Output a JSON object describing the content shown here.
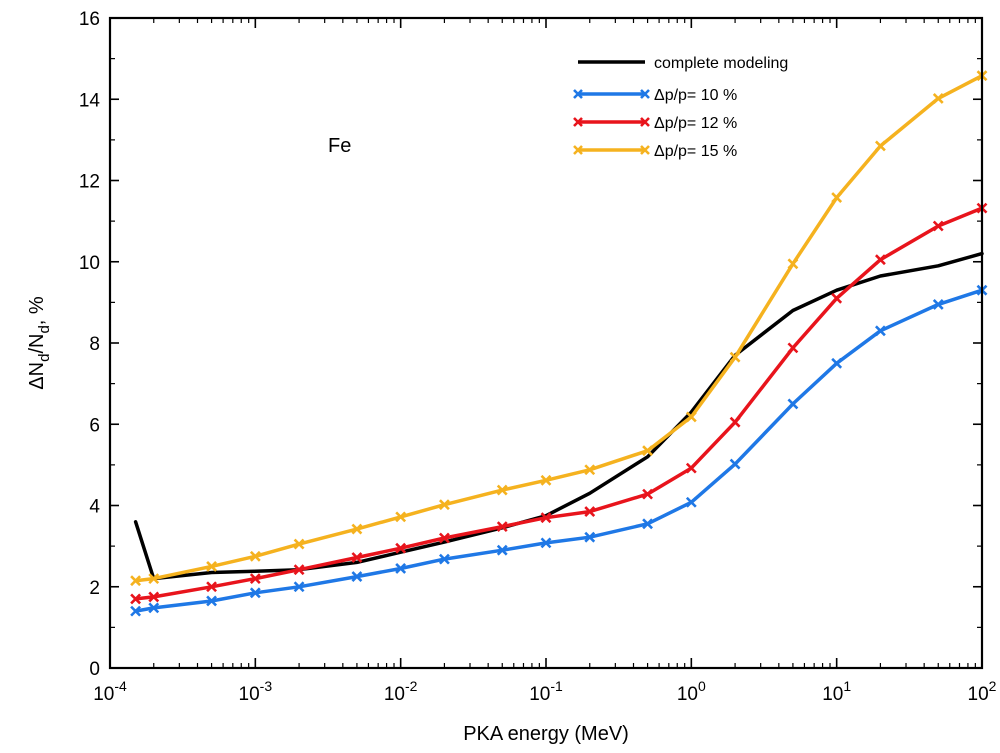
{
  "chart_data": {
    "type": "line",
    "annotation": "Fe",
    "xlabel": "PKA energy (MeV)",
    "ylabel_parts": [
      "ΔN",
      "d",
      "/N",
      "d",
      ", %"
    ],
    "x_scale": "log",
    "xlim": [
      0.0001,
      100
    ],
    "ylim": [
      0,
      16
    ],
    "grid": false,
    "legend_position": "top-right",
    "x_ticks": [
      {
        "base": "10",
        "exp": "-4",
        "value": 0.0001
      },
      {
        "base": "10",
        "exp": "-3",
        "value": 0.001
      },
      {
        "base": "10",
        "exp": "-2",
        "value": 0.01
      },
      {
        "base": "10",
        "exp": "-1",
        "value": 0.1
      },
      {
        "base": "10",
        "exp": "0",
        "value": 1
      },
      {
        "base": "10",
        "exp": "1",
        "value": 10
      },
      {
        "base": "10",
        "exp": "2",
        "value": 100
      }
    ],
    "y_ticks": [
      "0",
      "2",
      "4",
      "6",
      "8",
      "10",
      "12",
      "14",
      "16"
    ],
    "series": [
      {
        "name": "complete modeling",
        "color": "#000000",
        "marker": "none",
        "x": [
          0.00015,
          0.0002,
          0.0005,
          0.001,
          0.002,
          0.005,
          0.01,
          0.02,
          0.05,
          0.1,
          0.2,
          0.5,
          1,
          2,
          5,
          10,
          20,
          50,
          100
        ],
        "y": [
          3.6,
          2.2,
          2.35,
          2.38,
          2.42,
          2.6,
          2.85,
          3.1,
          3.45,
          3.75,
          4.3,
          5.2,
          6.3,
          7.7,
          8.8,
          9.3,
          9.65,
          9.9,
          10.2
        ]
      },
      {
        "name": "Δp/p= 10 %",
        "color": "#1f78e6",
        "marker": "x",
        "x": [
          0.00015,
          0.0002,
          0.0005,
          0.001,
          0.002,
          0.005,
          0.01,
          0.02,
          0.05,
          0.1,
          0.2,
          0.5,
          1,
          2,
          5,
          10,
          20,
          50,
          100
        ],
        "y": [
          1.4,
          1.48,
          1.65,
          1.85,
          2.0,
          2.25,
          2.45,
          2.68,
          2.9,
          3.08,
          3.22,
          3.55,
          4.08,
          5.02,
          6.5,
          7.5,
          8.3,
          8.95,
          9.3
        ]
      },
      {
        "name": "Δp/p= 12 %",
        "color": "#e8141c",
        "marker": "x",
        "x": [
          0.00015,
          0.0002,
          0.0005,
          0.001,
          0.002,
          0.005,
          0.01,
          0.02,
          0.05,
          0.1,
          0.2,
          0.5,
          1,
          2,
          5,
          10,
          20,
          50,
          100
        ],
        "y": [
          1.7,
          1.75,
          2.0,
          2.2,
          2.42,
          2.72,
          2.95,
          3.2,
          3.48,
          3.7,
          3.85,
          4.28,
          4.92,
          6.05,
          7.88,
          9.1,
          10.05,
          10.88,
          11.32
        ]
      },
      {
        "name": "Δp/p= 15 %",
        "color": "#f5b21f",
        "marker": "x",
        "x": [
          0.00015,
          0.0002,
          0.0005,
          0.001,
          0.002,
          0.005,
          0.01,
          0.02,
          0.05,
          0.1,
          0.2,
          0.5,
          1,
          2,
          5,
          10,
          20,
          50,
          100
        ],
        "y": [
          2.15,
          2.2,
          2.5,
          2.75,
          3.05,
          3.42,
          3.72,
          4.02,
          4.38,
          4.62,
          4.88,
          5.35,
          6.18,
          7.65,
          9.95,
          11.58,
          12.85,
          14.02,
          14.58
        ]
      }
    ]
  }
}
